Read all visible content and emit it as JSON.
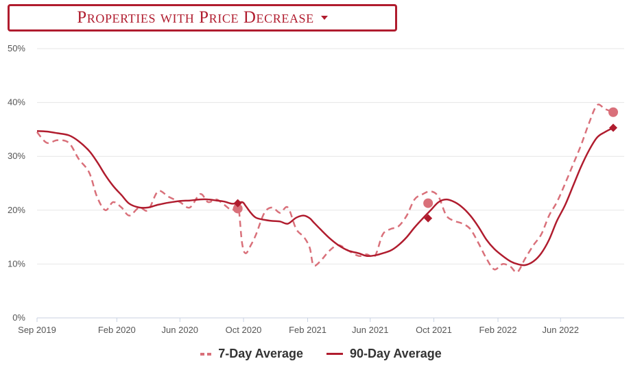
{
  "header": {
    "title": "Properties with Price Decrease"
  },
  "colors": {
    "accent": "#b01c2e",
    "series_7day": "#d9707a",
    "series_90day": "#b01c2e",
    "grid": "#e6e6e6"
  },
  "icons": {
    "dropdown": "caret-down-icon"
  },
  "chart_data": {
    "type": "line",
    "title": "",
    "xlabel": "",
    "ylabel": "",
    "ylim": [
      0,
      50
    ],
    "y_ticks": [
      {
        "value": 0,
        "label": "0%"
      },
      {
        "value": 10,
        "label": "10%"
      },
      {
        "value": 20,
        "label": "20%"
      },
      {
        "value": 30,
        "label": "30%"
      },
      {
        "value": 40,
        "label": "40%"
      },
      {
        "value": 50,
        "label": "50%"
      }
    ],
    "xlim": [
      "2019-09-01",
      "2022-10-01"
    ],
    "x_ticks": [
      {
        "date": "2019-09-01",
        "label": "Sep 2019"
      },
      {
        "date": "2020-02-01",
        "label": "Feb 2020"
      },
      {
        "date": "2020-06-01",
        "label": "Jun 2020"
      },
      {
        "date": "2020-10-01",
        "label": "Oct 2020"
      },
      {
        "date": "2021-02-01",
        "label": "Feb 2021"
      },
      {
        "date": "2021-06-01",
        "label": "Jun 2021"
      },
      {
        "date": "2021-10-01",
        "label": "Oct 2021"
      },
      {
        "date": "2022-02-01",
        "label": "Feb 2022"
      },
      {
        "date": "2022-06-01",
        "label": "Jun 2022"
      }
    ],
    "grid": true,
    "legend_position": "bottom-center",
    "series": [
      {
        "name": "7-Day Average",
        "style": "dashed",
        "color": "#d9707a",
        "points": [
          [
            "2019-09-01",
            34.5
          ],
          [
            "2019-09-20",
            32.5
          ],
          [
            "2019-10-10",
            33.0
          ],
          [
            "2019-11-01",
            32.5
          ],
          [
            "2019-11-20",
            29.5
          ],
          [
            "2019-12-10",
            27.0
          ],
          [
            "2019-12-25",
            22.5
          ],
          [
            "2020-01-10",
            20.0
          ],
          [
            "2020-01-25",
            21.5
          ],
          [
            "2020-02-10",
            20.5
          ],
          [
            "2020-02-25",
            19.0
          ],
          [
            "2020-03-15",
            20.5
          ],
          [
            "2020-04-01",
            20.0
          ],
          [
            "2020-04-20",
            23.5
          ],
          [
            "2020-05-10",
            22.5
          ],
          [
            "2020-06-01",
            21.5
          ],
          [
            "2020-06-20",
            20.5
          ],
          [
            "2020-07-10",
            23.0
          ],
          [
            "2020-07-25",
            21.5
          ],
          [
            "2020-08-10",
            22.0
          ],
          [
            "2020-08-25",
            21.0
          ],
          [
            "2020-09-10",
            20.0
          ],
          [
            "2020-09-20",
            21.5
          ],
          [
            "2020-09-28",
            14.0
          ],
          [
            "2020-10-05",
            12.0
          ],
          [
            "2020-10-15",
            13.5
          ],
          [
            "2020-10-25",
            15.5
          ],
          [
            "2020-11-10",
            19.5
          ],
          [
            "2020-11-25",
            20.5
          ],
          [
            "2020-12-10",
            19.5
          ],
          [
            "2020-12-25",
            20.5
          ],
          [
            "2021-01-10",
            16.5
          ],
          [
            "2021-01-25",
            15.0
          ],
          [
            "2021-02-05",
            13.0
          ],
          [
            "2021-02-12",
            9.8
          ],
          [
            "2021-02-25",
            10.5
          ],
          [
            "2021-03-15",
            12.5
          ],
          [
            "2021-04-01",
            13.5
          ],
          [
            "2021-04-20",
            12.5
          ],
          [
            "2021-05-10",
            11.5
          ],
          [
            "2021-05-25",
            11.8
          ],
          [
            "2021-06-10",
            11.5
          ],
          [
            "2021-06-25",
            15.5
          ],
          [
            "2021-07-10",
            16.5
          ],
          [
            "2021-07-25",
            17.0
          ],
          [
            "2021-08-10",
            19.0
          ],
          [
            "2021-08-25",
            22.0
          ],
          [
            "2021-09-10",
            23.0
          ],
          [
            "2021-09-25",
            23.5
          ],
          [
            "2021-10-10",
            22.5
          ],
          [
            "2021-10-25",
            19.0
          ],
          [
            "2021-11-10",
            18.0
          ],
          [
            "2021-11-25",
            17.5
          ],
          [
            "2021-12-10",
            16.5
          ],
          [
            "2021-12-25",
            14.0
          ],
          [
            "2022-01-10",
            11.0
          ],
          [
            "2022-01-25",
            9.0
          ],
          [
            "2022-02-10",
            10.0
          ],
          [
            "2022-02-25",
            9.5
          ],
          [
            "2022-03-10",
            8.5
          ],
          [
            "2022-03-25",
            11.0
          ],
          [
            "2022-04-10",
            13.5
          ],
          [
            "2022-04-25",
            15.5
          ],
          [
            "2022-05-10",
            19.0
          ],
          [
            "2022-05-25",
            21.5
          ],
          [
            "2022-06-10",
            25.0
          ],
          [
            "2022-06-25",
            28.5
          ],
          [
            "2022-07-10",
            32.0
          ],
          [
            "2022-07-25",
            36.0
          ],
          [
            "2022-08-10",
            39.5
          ],
          [
            "2022-08-25",
            38.8
          ],
          [
            "2022-09-10",
            38.2
          ]
        ],
        "markers": [
          {
            "date": "2020-09-20",
            "value": 20.3
          },
          {
            "date": "2021-09-20",
            "value": 21.3
          },
          {
            "date": "2022-09-10",
            "value": 38.2
          }
        ]
      },
      {
        "name": "90-Day Average",
        "style": "solid",
        "color": "#b01c2e",
        "points": [
          [
            "2019-09-01",
            34.7
          ],
          [
            "2019-09-20",
            34.6
          ],
          [
            "2019-10-10",
            34.3
          ],
          [
            "2019-11-01",
            33.9
          ],
          [
            "2019-11-20",
            32.8
          ],
          [
            "2019-12-10",
            31.0
          ],
          [
            "2019-12-25",
            29.0
          ],
          [
            "2020-01-10",
            26.5
          ],
          [
            "2020-01-25",
            24.5
          ],
          [
            "2020-02-10",
            22.8
          ],
          [
            "2020-02-25",
            21.2
          ],
          [
            "2020-03-15",
            20.5
          ],
          [
            "2020-04-01",
            20.5
          ],
          [
            "2020-04-20",
            21.0
          ],
          [
            "2020-05-10",
            21.4
          ],
          [
            "2020-06-01",
            21.7
          ],
          [
            "2020-06-20",
            21.8
          ],
          [
            "2020-07-10",
            22.0
          ],
          [
            "2020-07-25",
            22.0
          ],
          [
            "2020-08-10",
            21.8
          ],
          [
            "2020-08-25",
            21.6
          ],
          [
            "2020-09-10",
            21.2
          ],
          [
            "2020-09-28",
            21.5
          ],
          [
            "2020-10-05",
            20.8
          ],
          [
            "2020-10-15",
            19.5
          ],
          [
            "2020-10-25",
            18.6
          ],
          [
            "2020-11-10",
            18.2
          ],
          [
            "2020-11-25",
            18.0
          ],
          [
            "2020-12-10",
            17.9
          ],
          [
            "2020-12-25",
            17.5
          ],
          [
            "2021-01-10",
            18.6
          ],
          [
            "2021-01-25",
            19.0
          ],
          [
            "2021-02-05",
            18.5
          ],
          [
            "2021-02-12",
            17.8
          ],
          [
            "2021-02-25",
            16.5
          ],
          [
            "2021-03-15",
            14.8
          ],
          [
            "2021-04-01",
            13.5
          ],
          [
            "2021-04-20",
            12.5
          ],
          [
            "2021-05-10",
            12.0
          ],
          [
            "2021-05-25",
            11.5
          ],
          [
            "2021-06-10",
            11.6
          ],
          [
            "2021-06-25",
            12.0
          ],
          [
            "2021-07-10",
            12.5
          ],
          [
            "2021-07-25",
            13.5
          ],
          [
            "2021-08-10",
            15.0
          ],
          [
            "2021-08-25",
            16.8
          ],
          [
            "2021-09-10",
            18.5
          ],
          [
            "2021-09-25",
            20.0
          ],
          [
            "2021-10-10",
            21.5
          ],
          [
            "2021-10-25",
            22.0
          ],
          [
            "2021-11-10",
            21.5
          ],
          [
            "2021-11-25",
            20.5
          ],
          [
            "2021-12-10",
            19.0
          ],
          [
            "2021-12-25",
            17.0
          ],
          [
            "2022-01-10",
            14.5
          ],
          [
            "2022-01-25",
            12.8
          ],
          [
            "2022-02-10",
            11.5
          ],
          [
            "2022-02-25",
            10.5
          ],
          [
            "2022-03-10",
            10.0
          ],
          [
            "2022-03-25",
            9.8
          ],
          [
            "2022-04-10",
            10.5
          ],
          [
            "2022-04-25",
            12.0
          ],
          [
            "2022-05-10",
            14.5
          ],
          [
            "2022-05-25",
            18.0
          ],
          [
            "2022-06-10",
            21.0
          ],
          [
            "2022-06-25",
            24.5
          ],
          [
            "2022-07-10",
            28.0
          ],
          [
            "2022-07-25",
            31.0
          ],
          [
            "2022-08-10",
            33.5
          ],
          [
            "2022-08-25",
            34.5
          ],
          [
            "2022-09-10",
            35.3
          ]
        ],
        "markers": [
          {
            "date": "2020-09-20",
            "value": 21.3
          },
          {
            "date": "2021-09-20",
            "value": 18.5
          },
          {
            "date": "2022-09-10",
            "value": 35.3
          }
        ]
      }
    ]
  }
}
